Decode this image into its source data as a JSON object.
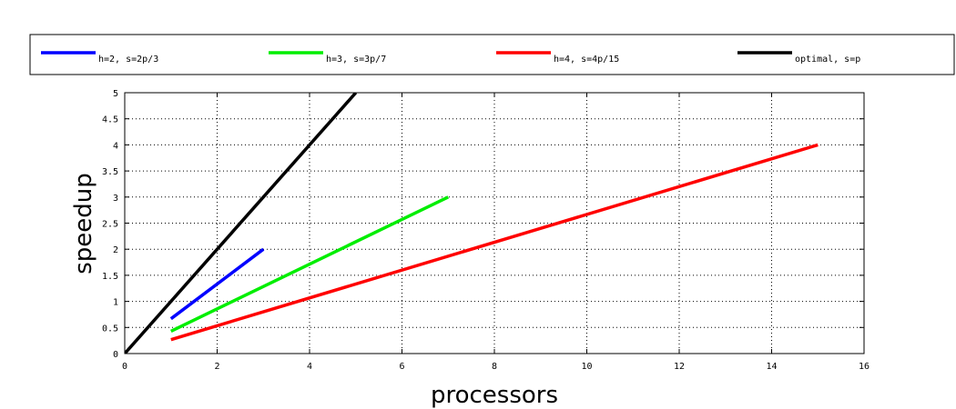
{
  "chart_data": {
    "type": "line",
    "title": "",
    "xlabel": "processors",
    "ylabel": "speedup",
    "xlim": [
      0,
      16
    ],
    "ylim": [
      0,
      5
    ],
    "xticks": [
      "0",
      "2",
      "4",
      "6",
      "8",
      "10",
      "12",
      "14",
      "16"
    ],
    "yticks": [
      "0",
      "0.5",
      "1",
      "1.5",
      "2",
      "2.5",
      "3",
      "3.5",
      "4",
      "4.5",
      "5"
    ],
    "grid": true,
    "legend_placement": "top",
    "series": [
      {
        "name": "h=2, s=2p/3",
        "color": "#0000ff",
        "x": [
          1,
          3
        ],
        "y": [
          0.6667,
          2
        ]
      },
      {
        "name": "h=3, s=3p/7",
        "color": "#00ee00",
        "x": [
          1,
          7
        ],
        "y": [
          0.4286,
          3
        ]
      },
      {
        "name": "h=4, s=4p/15",
        "color": "#ff0000",
        "x": [
          1,
          15
        ],
        "y": [
          0.2667,
          4
        ]
      },
      {
        "name": "optimal, s=p",
        "color": "#000000",
        "x": [
          0,
          5
        ],
        "y": [
          0,
          5
        ]
      }
    ]
  }
}
